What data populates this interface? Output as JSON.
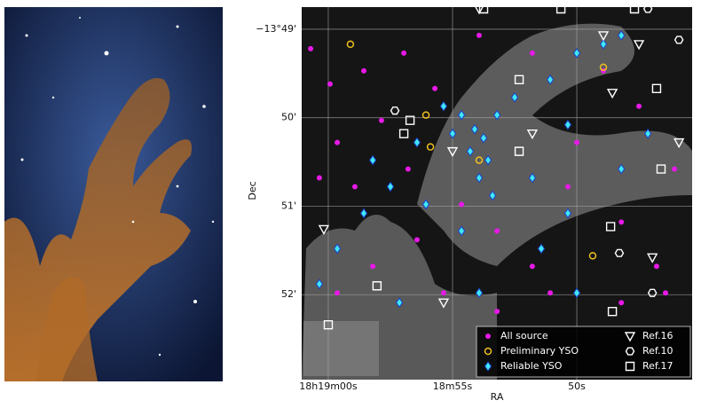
{
  "chart_data": {
    "type": "scatter",
    "xlabel": "RA",
    "ylabel": "Dec",
    "xlim": [
      61.07,
      45.36
    ],
    "ylim": [
      52.96,
      48.75
    ],
    "xticks": [
      {
        "value": 60,
        "label": "18h19m00s"
      },
      {
        "value": 55,
        "label": "18m55s"
      },
      {
        "value": 50,
        "label": "50s"
      }
    ],
    "yticks": [
      {
        "value": 49,
        "label": "−13°49'"
      },
      {
        "value": 50,
        "label": "50'"
      },
      {
        "value": 51,
        "label": "51'"
      },
      {
        "value": 52,
        "label": "52'"
      }
    ],
    "grid": true,
    "legend": "lower right",
    "series": [
      {
        "name": "All source",
        "color": "#e619e6",
        "marker": "circle",
        "x": [
          60.71,
          59.93,
          58.57,
          56.96,
          55.71,
          57.86,
          59.64,
          60.36,
          58.93,
          56.79,
          54.64,
          53.21,
          51.79,
          50.36,
          48.21,
          46.79,
          46.07,
          47.5,
          48.93,
          51.79,
          53.93,
          56.43,
          58.21,
          59.64,
          55.36,
          53.21,
          51.07,
          48.21,
          46.43,
          50.0
        ],
        "values": [
          49.22,
          49.62,
          49.47,
          49.27,
          49.67,
          50.03,
          50.28,
          50.68,
          50.78,
          50.58,
          50.98,
          51.28,
          51.68,
          50.78,
          51.18,
          51.68,
          50.58,
          49.87,
          49.47,
          49.27,
          49.07,
          51.38,
          51.68,
          51.98,
          51.98,
          52.19,
          51.98,
          52.09,
          51.98,
          50.28
        ]
      },
      {
        "name": "Preliminary YSO",
        "color": "#f0c020",
        "marker": "ring",
        "x": [
          59.11,
          56.07,
          55.89,
          53.93,
          48.93,
          49.36
        ],
        "values": [
          49.17,
          49.97,
          50.33,
          50.48,
          49.43,
          51.56
        ]
      },
      {
        "name": "Reliable YSO",
        "color": "#40e8f0",
        "marker": "diamond",
        "x": [
          54.64,
          54.11,
          53.75,
          55.0,
          54.29,
          53.57,
          53.93,
          53.39,
          55.36,
          53.21,
          52.5,
          51.07,
          50.0,
          48.93,
          48.21,
          50.36,
          51.79,
          56.43,
          57.5,
          58.57,
          59.64,
          60.36,
          58.21,
          56.07,
          54.64,
          50.36,
          48.21,
          47.14,
          51.43,
          50.0,
          53.93,
          57.14
        ],
        "values": [
          49.97,
          50.13,
          50.23,
          50.18,
          50.38,
          50.48,
          50.68,
          50.88,
          49.87,
          49.97,
          49.77,
          49.57,
          49.27,
          49.17,
          49.07,
          50.08,
          50.68,
          50.28,
          50.78,
          51.08,
          51.48,
          51.88,
          50.48,
          50.98,
          51.28,
          51.08,
          50.58,
          50.18,
          51.48,
          51.98,
          51.98,
          52.09
        ]
      },
      {
        "name": "Ref.16",
        "color": "#ffffff",
        "marker": "triangle",
        "x": [
          53.93,
          48.93,
          47.5,
          48.57,
          45.89,
          55.0,
          51.79,
          55.36,
          46.96,
          60.18
        ],
        "values": [
          48.77,
          49.07,
          49.17,
          49.72,
          50.28,
          50.38,
          50.18,
          52.09,
          51.58,
          51.26
        ]
      },
      {
        "name": "Ref.10",
        "color": "#ffffff",
        "marker": "hexagon",
        "x": [
          47.14,
          45.89,
          57.32,
          48.29,
          46.96
        ],
        "values": [
          48.77,
          49.12,
          49.92,
          51.53,
          51.98
        ]
      },
      {
        "name": "Ref.17",
        "color": "#ffffff",
        "marker": "square",
        "x": [
          53.75,
          50.64,
          47.68,
          46.79,
          52.32,
          56.71,
          56.96,
          52.32,
          48.64,
          58.04,
          48.57,
          60.0,
          46.61
        ],
        "values": [
          48.77,
          48.77,
          48.77,
          49.67,
          49.57,
          50.03,
          50.18,
          50.38,
          51.23,
          51.9,
          52.19,
          52.34,
          50.58
        ]
      }
    ]
  }
}
